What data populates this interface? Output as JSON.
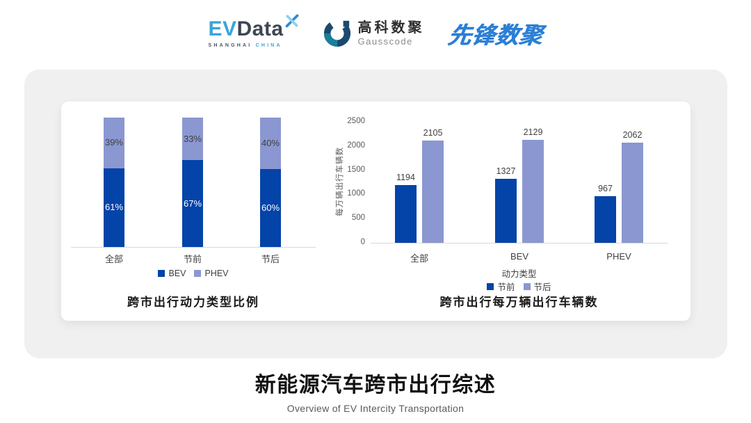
{
  "header": {
    "logos": {
      "evdata": {
        "ev": "EV",
        "data": "Data",
        "sub_left": "SHANGHAI",
        "sub_right": "CHINA"
      },
      "gausscode": {
        "cn": "高科数聚",
        "en": "Gausscode"
      },
      "pioneer": {
        "text": "先锋数聚"
      }
    }
  },
  "footer": {
    "title": "新能源汽车跨市出行综述",
    "subtitle": "Overview of EV Intercity Transportation"
  },
  "colors": {
    "series_dark_blue": "#0443a8",
    "series_periwinkle": "#8b97d1",
    "logo_light_blue": "#3aa3dc",
    "logo_dark_slate": "#3d4654",
    "gausscode_navy": "#1b4a70",
    "gausscode_teal": "#1a7f9b",
    "pioneer_blue": "#2b7fd6",
    "panel_gray": "#f0f0f1",
    "axis_gray": "#d9d9d9"
  },
  "chart_data": [
    {
      "type": "bar",
      "variant": "stacked_percent",
      "title": "跨市出行动力类型比例",
      "categories": [
        "全部",
        "节前",
        "节后"
      ],
      "series": [
        {
          "name": "BEV",
          "values": [
            61,
            67,
            60
          ],
          "color": "#0443a8",
          "label_color": "#ffffff"
        },
        {
          "name": "PHEV",
          "values": [
            39,
            33,
            40
          ],
          "color": "#8b97d1",
          "label_color": "#3f3f3f"
        }
      ],
      "value_suffix": "%",
      "ylim": [
        0,
        100
      ],
      "grid": false,
      "legend_position": "bottom"
    },
    {
      "type": "bar",
      "variant": "grouped",
      "title": "跨市出行每万辆出行车辆数",
      "categories": [
        "全部",
        "BEV",
        "PHEV"
      ],
      "xlabel": "动力类型",
      "ylabel": "每万辆出行车辆数",
      "ylim": [
        0,
        2500
      ],
      "yticks": [
        0,
        500,
        1000,
        1500,
        2000,
        2500
      ],
      "series": [
        {
          "name": "节前",
          "values": [
            1194,
            1327,
            967
          ],
          "color": "#0443a8"
        },
        {
          "name": "节后",
          "values": [
            2105,
            2129,
            2062
          ],
          "color": "#8b97d1"
        }
      ],
      "grid": false,
      "legend_position": "bottom"
    }
  ]
}
